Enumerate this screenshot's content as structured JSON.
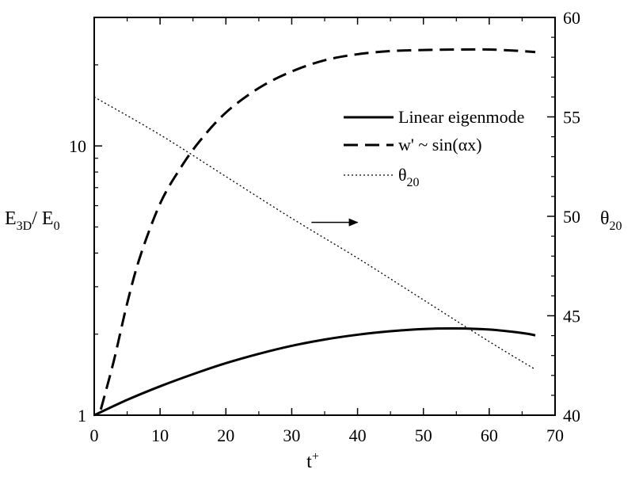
{
  "chart_data": {
    "type": "line",
    "xlabel": {
      "base": "t",
      "sup": "+"
    },
    "ylabel_left": {
      "parts": [
        {
          "t": "E"
        },
        {
          "t": "3D",
          "sub": true
        },
        {
          "t": "/ E"
        },
        {
          "t": "0",
          "sub": true
        }
      ]
    },
    "ylabel_right": {
      "parts": [
        {
          "t": "θ"
        },
        {
          "t": "20",
          "sub": true
        }
      ]
    },
    "xlim": [
      0,
      70
    ],
    "xticks": [
      "0",
      "10",
      "20",
      "30",
      "40",
      "50",
      "60",
      "70"
    ],
    "ylim_left": [
      1,
      30
    ],
    "y_left_scale": "log",
    "yticks_left": [
      "1",
      "10"
    ],
    "ylim_right": [
      40,
      60
    ],
    "yticks_right": [
      "40",
      "45",
      "50",
      "55",
      "60"
    ],
    "grid": false,
    "legend_placement": "right, upper-middle",
    "series": [
      {
        "name": "Linear eigenmode",
        "axis": "left",
        "style": "solid",
        "x": [
          0,
          5,
          10,
          15,
          20,
          25,
          30,
          35,
          40,
          45,
          50,
          55,
          60,
          65,
          67
        ],
        "y": [
          1.0,
          1.14,
          1.28,
          1.42,
          1.56,
          1.69,
          1.81,
          1.91,
          1.99,
          2.05,
          2.09,
          2.1,
          2.08,
          2.02,
          1.98
        ]
      },
      {
        "name": "w' ~ sin(αx)",
        "axis": "left",
        "style": "dashed",
        "x": [
          1,
          3,
          5,
          7,
          10,
          13,
          16,
          20,
          25,
          30,
          35,
          40,
          45,
          50,
          55,
          60,
          65,
          67
        ],
        "y": [
          1.05,
          1.6,
          2.6,
          3.9,
          6.1,
          8.2,
          10.4,
          13.3,
          16.4,
          18.9,
          20.8,
          21.9,
          22.5,
          22.7,
          22.8,
          22.8,
          22.5,
          22.3
        ]
      },
      {
        "name": "θ",
        "name_sub": "20",
        "axis": "right",
        "style": "dotted",
        "x": [
          0,
          10,
          20,
          30,
          40,
          50,
          60,
          67
        ],
        "y": [
          56.0,
          54.1,
          52.0,
          49.9,
          47.9,
          45.8,
          43.7,
          42.3
        ]
      }
    ],
    "annotations": [
      {
        "type": "arrow",
        "x_from": 33,
        "x_to": 40,
        "y_left": 5.2
      }
    ]
  }
}
